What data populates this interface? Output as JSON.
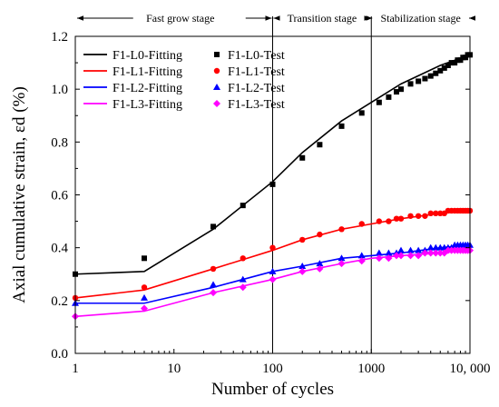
{
  "chart_data": {
    "type": "line",
    "xlabel": "Number of cycles",
    "ylabel": "Axial cumulative strain, εd (%)",
    "x_scale": "log",
    "xlim": [
      1,
      10000
    ],
    "ylim": [
      0.0,
      1.2
    ],
    "x_ticks": [
      {
        "value": 1,
        "label": "1"
      },
      {
        "value": 10,
        "label": "10"
      },
      {
        "value": 100,
        "label": "100"
      },
      {
        "value": 1000,
        "label": "1000"
      },
      {
        "value": 10000,
        "label": "10, 000"
      }
    ],
    "y_ticks": [
      {
        "value": 0.0,
        "label": "0.0"
      },
      {
        "value": 0.2,
        "label": "0.2"
      },
      {
        "value": 0.4,
        "label": "0.4"
      },
      {
        "value": 0.6,
        "label": "0.6"
      },
      {
        "value": 0.8,
        "label": "0.8"
      },
      {
        "value": 1.0,
        "label": "1.0"
      },
      {
        "value": 1.2,
        "label": "1.2"
      }
    ],
    "stage_boundaries": [
      100,
      1000
    ],
    "stages": [
      {
        "label": "Fast grow stage",
        "from": 1,
        "to": 100
      },
      {
        "label": "Transition stage",
        "from": 100,
        "to": 1000
      },
      {
        "label": "Stabilization stage",
        "from": 1000,
        "to": 10000
      }
    ],
    "legend_position": "top-left",
    "series": [
      {
        "name": "F1-L0-Fitting",
        "kind": "line",
        "color": "#000000",
        "x": [
          1,
          5,
          25,
          100,
          200,
          500,
          1000,
          2000,
          5000,
          10000
        ],
        "y": [
          0.3,
          0.31,
          0.47,
          0.65,
          0.76,
          0.88,
          0.95,
          1.02,
          1.09,
          1.13
        ]
      },
      {
        "name": "F1-L1-Fitting",
        "kind": "line",
        "color": "#ff0000",
        "x": [
          1,
          5,
          25,
          100,
          200,
          500,
          1000,
          2000,
          5000,
          10000
        ],
        "y": [
          0.21,
          0.24,
          0.32,
          0.39,
          0.43,
          0.47,
          0.49,
          0.51,
          0.53,
          0.54
        ]
      },
      {
        "name": "F1-L2-Fitting",
        "kind": "line",
        "color": "#0000ff",
        "x": [
          1,
          5,
          25,
          100,
          200,
          500,
          1000,
          2000,
          5000,
          10000
        ],
        "y": [
          0.19,
          0.19,
          0.25,
          0.31,
          0.33,
          0.36,
          0.37,
          0.38,
          0.4,
          0.41
        ]
      },
      {
        "name": "F1-L3-Fitting",
        "kind": "line",
        "color": "#ff00ff",
        "x": [
          1,
          5,
          25,
          100,
          200,
          500,
          1000,
          2000,
          5000,
          10000
        ],
        "y": [
          0.14,
          0.16,
          0.23,
          0.28,
          0.31,
          0.34,
          0.36,
          0.37,
          0.38,
          0.39
        ]
      },
      {
        "name": "F1-L0-Test",
        "kind": "points",
        "marker": "square",
        "color": "#000000",
        "x": [
          1,
          5,
          25,
          50,
          100,
          200,
          300,
          500,
          800,
          1200,
          1500,
          1800,
          2000,
          2500,
          3000,
          3500,
          4000,
          4500,
          5000,
          5500,
          6000,
          6500,
          7000,
          7500,
          8000,
          8500,
          9000,
          9500,
          10000
        ],
        "y": [
          0.3,
          0.36,
          0.48,
          0.56,
          0.64,
          0.74,
          0.79,
          0.86,
          0.91,
          0.95,
          0.97,
          0.99,
          1.0,
          1.02,
          1.03,
          1.04,
          1.05,
          1.06,
          1.07,
          1.08,
          1.09,
          1.1,
          1.1,
          1.11,
          1.11,
          1.12,
          1.12,
          1.13,
          1.13
        ]
      },
      {
        "name": "F1-L1-Test",
        "kind": "points",
        "marker": "circle",
        "color": "#ff0000",
        "x": [
          1,
          5,
          25,
          50,
          100,
          200,
          300,
          500,
          800,
          1200,
          1500,
          1800,
          2000,
          2500,
          3000,
          3500,
          4000,
          4500,
          5000,
          5500,
          6000,
          6500,
          7000,
          7500,
          8000,
          8500,
          9000,
          9500,
          10000
        ],
        "y": [
          0.21,
          0.25,
          0.32,
          0.36,
          0.4,
          0.43,
          0.45,
          0.47,
          0.49,
          0.5,
          0.5,
          0.51,
          0.51,
          0.52,
          0.52,
          0.52,
          0.53,
          0.53,
          0.53,
          0.53,
          0.54,
          0.54,
          0.54,
          0.54,
          0.54,
          0.54,
          0.54,
          0.54,
          0.54
        ]
      },
      {
        "name": "F1-L2-Test",
        "kind": "points",
        "marker": "triangle",
        "color": "#0000ff",
        "x": [
          1,
          5,
          25,
          50,
          100,
          200,
          300,
          500,
          800,
          1200,
          1500,
          1800,
          2000,
          2500,
          3000,
          3500,
          4000,
          4500,
          5000,
          5500,
          6000,
          6500,
          7000,
          7500,
          8000,
          8500,
          9000,
          9500,
          10000
        ],
        "y": [
          0.19,
          0.21,
          0.26,
          0.28,
          0.31,
          0.33,
          0.34,
          0.36,
          0.37,
          0.38,
          0.38,
          0.38,
          0.39,
          0.39,
          0.39,
          0.39,
          0.4,
          0.4,
          0.4,
          0.4,
          0.4,
          0.4,
          0.41,
          0.41,
          0.41,
          0.41,
          0.41,
          0.41,
          0.41
        ]
      },
      {
        "name": "F1-L3-Test",
        "kind": "points",
        "marker": "diamond",
        "color": "#ff00ff",
        "x": [
          1,
          5,
          25,
          50,
          100,
          200,
          300,
          500,
          800,
          1200,
          1500,
          1800,
          2000,
          2500,
          3000,
          3500,
          4000,
          4500,
          5000,
          5500,
          6000,
          6500,
          7000,
          7500,
          8000,
          8500,
          9000,
          9500,
          10000
        ],
        "y": [
          0.14,
          0.17,
          0.23,
          0.25,
          0.28,
          0.31,
          0.32,
          0.34,
          0.35,
          0.36,
          0.36,
          0.37,
          0.37,
          0.37,
          0.37,
          0.38,
          0.38,
          0.38,
          0.38,
          0.38,
          0.39,
          0.39,
          0.39,
          0.39,
          0.39,
          0.39,
          0.39,
          0.39,
          0.39
        ]
      }
    ]
  }
}
